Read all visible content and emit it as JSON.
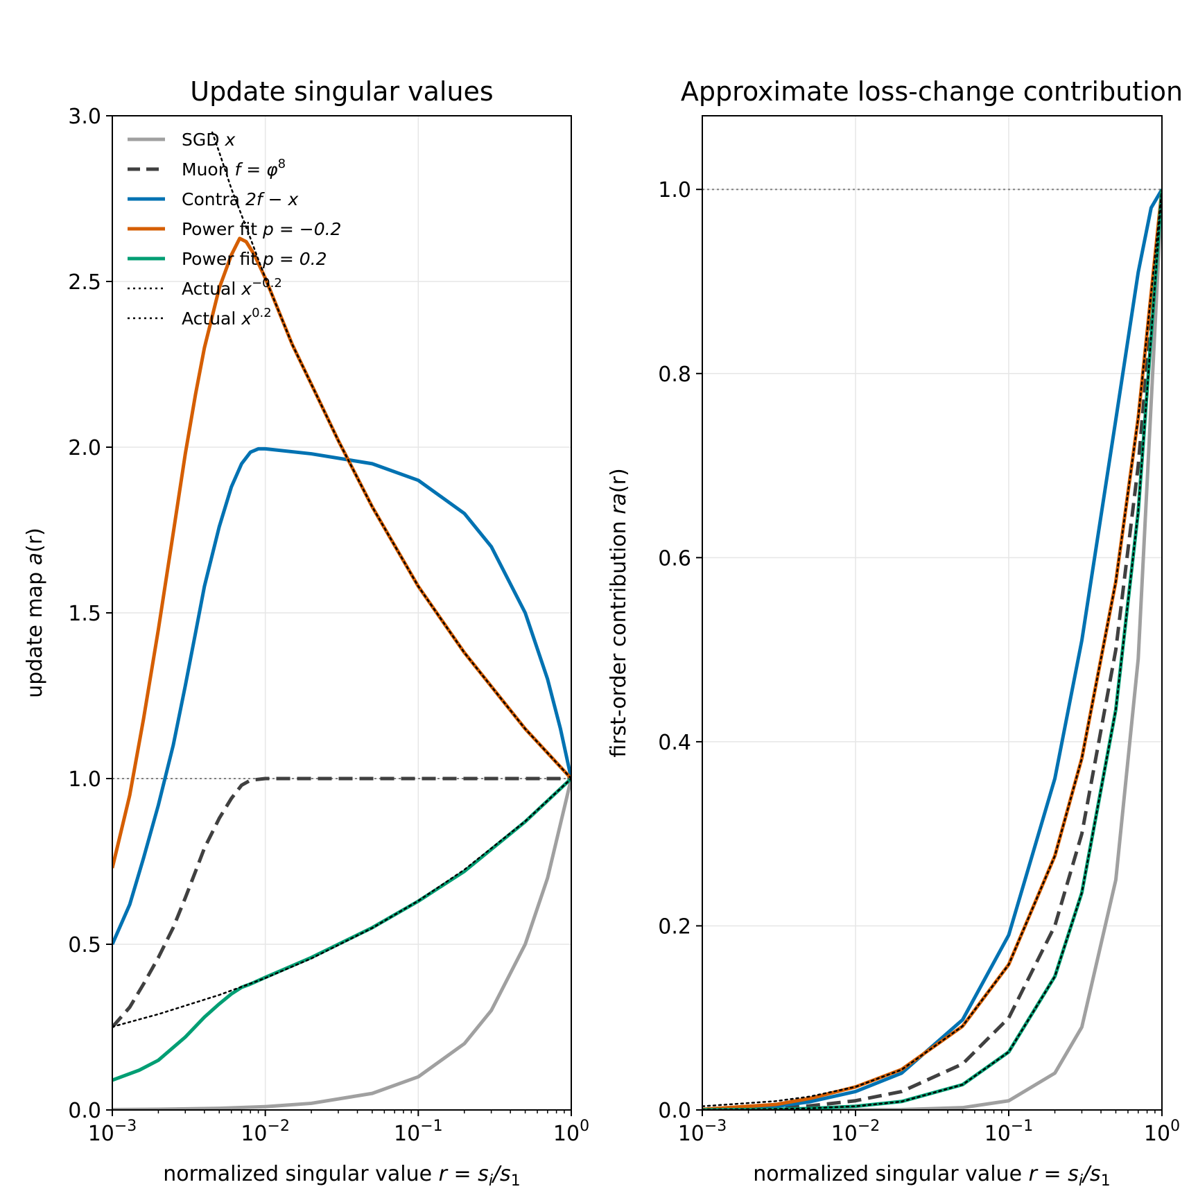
{
  "figure": {
    "suptitle": ""
  },
  "chart_data": [
    {
      "type": "line",
      "title": "Update singular values",
      "xlabel": "normalized singular value r = s_i/s_1",
      "ylabel": "update map a(r)",
      "xscale": "log",
      "xlim": [
        0.001,
        1
      ],
      "ylim": [
        0,
        3
      ],
      "grid": true,
      "legend_position": "top-left",
      "x_ticks": [
        {
          "value": 0.001,
          "base": "10",
          "exp": "−3"
        },
        {
          "value": 0.01,
          "base": "10",
          "exp": "−2"
        },
        {
          "value": 0.1,
          "base": "10",
          "exp": "−1"
        },
        {
          "value": 1,
          "base": "10",
          "exp": "0"
        }
      ],
      "y_ticks": [
        {
          "value": 0.0,
          "label": "0.0"
        },
        {
          "value": 0.5,
          "label": "0.5"
        },
        {
          "value": 1.0,
          "label": "1.0"
        },
        {
          "value": 1.5,
          "label": "1.5"
        },
        {
          "value": 2.0,
          "label": "2.0"
        },
        {
          "value": 2.5,
          "label": "2.5"
        },
        {
          "value": 3.0,
          "label": "3.0"
        }
      ],
      "reference_line": {
        "y": 1.0,
        "color": "#808080",
        "style": "dotted"
      },
      "series": [
        {
          "name": "SGD x",
          "color": "#a0a0a0",
          "style": "solid",
          "x": [
            0.001,
            0.002,
            0.005,
            0.01,
            0.02,
            0.05,
            0.1,
            0.2,
            0.3,
            0.5,
            0.7,
            1.0
          ],
          "y": [
            0.001,
            0.002,
            0.005,
            0.01,
            0.02,
            0.05,
            0.1,
            0.2,
            0.3,
            0.5,
            0.7,
            1.0
          ]
        },
        {
          "name": "Muon f = φ^8",
          "color": "#404040",
          "style": "dashed",
          "x": [
            0.001,
            0.0013,
            0.0016,
            0.002,
            0.0025,
            0.003,
            0.0035,
            0.004,
            0.005,
            0.006,
            0.007,
            0.008,
            0.01,
            0.02,
            0.05,
            0.1,
            0.2,
            0.5,
            1.0
          ],
          "y": [
            0.25,
            0.31,
            0.38,
            0.46,
            0.55,
            0.64,
            0.72,
            0.79,
            0.88,
            0.94,
            0.98,
            0.995,
            1.0,
            1.0,
            1.0,
            1.0,
            1.0,
            1.0,
            1.0
          ]
        },
        {
          "name": "Contra 2f − x",
          "color": "#0072b2",
          "style": "solid",
          "x": [
            0.001,
            0.0013,
            0.0016,
            0.002,
            0.0025,
            0.003,
            0.0035,
            0.004,
            0.005,
            0.006,
            0.007,
            0.008,
            0.009,
            0.01,
            0.02,
            0.05,
            0.1,
            0.2,
            0.3,
            0.5,
            0.7,
            0.85,
            1.0
          ],
          "y": [
            0.5,
            0.62,
            0.76,
            0.92,
            1.1,
            1.28,
            1.44,
            1.58,
            1.76,
            1.88,
            1.95,
            1.985,
            1.995,
            1.995,
            1.98,
            1.95,
            1.9,
            1.8,
            1.7,
            1.5,
            1.3,
            1.15,
            1.0
          ]
        },
        {
          "name": "Power fit p = −0.2",
          "color": "#d55e00",
          "style": "solid",
          "x": [
            0.001,
            0.0013,
            0.0016,
            0.002,
            0.0025,
            0.003,
            0.0035,
            0.004,
            0.005,
            0.006,
            0.0068,
            0.0075,
            0.0085,
            0.01,
            0.015,
            0.02,
            0.03,
            0.05,
            0.1,
            0.2,
            0.5,
            1.0
          ],
          "y": [
            0.73,
            0.95,
            1.18,
            1.45,
            1.74,
            1.98,
            2.16,
            2.3,
            2.48,
            2.58,
            2.63,
            2.62,
            2.58,
            2.51,
            2.31,
            2.19,
            2.02,
            1.82,
            1.58,
            1.38,
            1.15,
            1.0
          ]
        },
        {
          "name": "Power fit p = 0.2",
          "color": "#009e73",
          "style": "solid",
          "x": [
            0.001,
            0.0015,
            0.002,
            0.003,
            0.004,
            0.005,
            0.006,
            0.007,
            0.008,
            0.01,
            0.02,
            0.05,
            0.1,
            0.2,
            0.5,
            1.0
          ],
          "y": [
            0.09,
            0.12,
            0.15,
            0.22,
            0.28,
            0.32,
            0.35,
            0.37,
            0.38,
            0.4,
            0.46,
            0.55,
            0.63,
            0.72,
            0.87,
            1.0
          ]
        },
        {
          "name": "Actual x^−0.2",
          "color": "#000000",
          "style": "dotted",
          "x": [
            0.0045,
            0.005,
            0.006,
            0.007,
            0.008,
            0.01,
            0.015,
            0.02,
            0.03,
            0.05,
            0.1,
            0.2,
            0.5,
            1.0
          ],
          "y": [
            2.95,
            2.89,
            2.78,
            2.7,
            2.63,
            2.51,
            2.31,
            2.19,
            2.02,
            1.82,
            1.58,
            1.38,
            1.15,
            1.0
          ]
        },
        {
          "name": "Actual x^0.2",
          "color": "#000000",
          "style": "dotted",
          "x": [
            0.001,
            0.002,
            0.005,
            0.01,
            0.02,
            0.05,
            0.1,
            0.2,
            0.5,
            1.0
          ],
          "y": [
            0.251,
            0.289,
            0.347,
            0.398,
            0.457,
            0.549,
            0.631,
            0.725,
            0.871,
            1.0
          ]
        }
      ]
    },
    {
      "type": "line",
      "title": "Approximate loss-change contribution",
      "xlabel": "normalized singular value r = s_i/s_1",
      "ylabel": "first-order contribution r a(r)",
      "xscale": "log",
      "xlim": [
        0.001,
        1
      ],
      "ylim": [
        0,
        1.08
      ],
      "grid": true,
      "x_ticks": [
        {
          "value": 0.001,
          "base": "10",
          "exp": "−3"
        },
        {
          "value": 0.01,
          "base": "10",
          "exp": "−2"
        },
        {
          "value": 0.1,
          "base": "10",
          "exp": "−1"
        },
        {
          "value": 1,
          "base": "10",
          "exp": "0"
        }
      ],
      "y_ticks": [
        {
          "value": 0.0,
          "label": "0.0"
        },
        {
          "value": 0.2,
          "label": "0.2"
        },
        {
          "value": 0.4,
          "label": "0.4"
        },
        {
          "value": 0.6,
          "label": "0.6"
        },
        {
          "value": 0.8,
          "label": "0.8"
        },
        {
          "value": 1.0,
          "label": "1.0"
        }
      ],
      "reference_line": {
        "y": 1.0,
        "color": "#808080",
        "style": "dotted"
      },
      "series": [
        {
          "name": "SGD x",
          "color": "#a0a0a0",
          "style": "solid",
          "x": [
            0.001,
            0.005,
            0.01,
            0.02,
            0.05,
            0.1,
            0.2,
            0.3,
            0.5,
            0.7,
            1.0
          ],
          "y": [
            0.0,
            0.0,
            0.0001,
            0.0004,
            0.0025,
            0.01,
            0.04,
            0.09,
            0.25,
            0.49,
            1.0
          ]
        },
        {
          "name": "Muon f = φ^8",
          "color": "#404040",
          "style": "dashed",
          "x": [
            0.001,
            0.003,
            0.005,
            0.01,
            0.02,
            0.05,
            0.1,
            0.2,
            0.3,
            0.5,
            0.7,
            1.0
          ],
          "y": [
            0.0003,
            0.002,
            0.0044,
            0.01,
            0.02,
            0.05,
            0.1,
            0.2,
            0.3,
            0.5,
            0.7,
            1.0
          ]
        },
        {
          "name": "Contra 2f − x",
          "color": "#0072b2",
          "style": "solid",
          "x": [
            0.001,
            0.003,
            0.005,
            0.01,
            0.02,
            0.05,
            0.1,
            0.2,
            0.3,
            0.5,
            0.7,
            0.85,
            1.0
          ],
          "y": [
            0.0005,
            0.0038,
            0.0088,
            0.02,
            0.04,
            0.098,
            0.19,
            0.36,
            0.51,
            0.75,
            0.91,
            0.98,
            1.0
          ]
        },
        {
          "name": "Power fit p = −0.2",
          "color": "#d55e00",
          "style": "solid",
          "x": [
            0.001,
            0.003,
            0.005,
            0.01,
            0.02,
            0.05,
            0.1,
            0.2,
            0.3,
            0.5,
            0.7,
            1.0
          ],
          "y": [
            0.0007,
            0.0059,
            0.0124,
            0.025,
            0.044,
            0.091,
            0.158,
            0.276,
            0.382,
            0.574,
            0.752,
            1.0
          ]
        },
        {
          "name": "Power fit p = 0.2",
          "color": "#009e73",
          "style": "solid",
          "x": [
            0.001,
            0.003,
            0.005,
            0.01,
            0.02,
            0.05,
            0.1,
            0.2,
            0.3,
            0.5,
            0.7,
            1.0
          ],
          "y": [
            0.0001,
            0.0007,
            0.0016,
            0.004,
            0.0092,
            0.0275,
            0.063,
            0.145,
            0.236,
            0.435,
            0.65,
            1.0
          ]
        },
        {
          "name": "Actual x^−0.2",
          "color": "#000000",
          "style": "dotted",
          "x": [
            0.001,
            0.003,
            0.005,
            0.01,
            0.02,
            0.05,
            0.1,
            0.2,
            0.3,
            0.5,
            0.7,
            1.0
          ],
          "y": [
            0.004,
            0.00955,
            0.0145,
            0.0251,
            0.0437,
            0.0911,
            0.158,
            0.276,
            0.382,
            0.574,
            0.752,
            1.0
          ]
        },
        {
          "name": "Actual x^0.2",
          "color": "#000000",
          "style": "dotted",
          "x": [
            0.001,
            0.003,
            0.005,
            0.01,
            0.02,
            0.05,
            0.1,
            0.2,
            0.3,
            0.5,
            0.7,
            1.0
          ],
          "y": [
            0.0003,
            0.001,
            0.0017,
            0.004,
            0.0091,
            0.0275,
            0.063,
            0.145,
            0.236,
            0.435,
            0.65,
            1.0
          ]
        }
      ]
    }
  ],
  "legend": {
    "items": [
      {
        "style": "solid",
        "color": "#a0a0a0",
        "text": "SGD ",
        "math": "x",
        "math_sup": "",
        "tail": ""
      },
      {
        "style": "dashed",
        "color": "#404040",
        "text": "Muon ",
        "math": "f = φ",
        "math_sup": "8",
        "tail": ""
      },
      {
        "style": "solid",
        "color": "#0072b2",
        "text": "Contra ",
        "math": "2f − x",
        "math_sup": "",
        "tail": ""
      },
      {
        "style": "solid",
        "color": "#d55e00",
        "text": "Power fit ",
        "math": "p = −0.2",
        "math_sup": "",
        "tail": ""
      },
      {
        "style": "solid",
        "color": "#009e73",
        "text": "Power fit ",
        "math": "p = 0.2",
        "math_sup": "",
        "tail": ""
      },
      {
        "style": "dotted",
        "color": "#000000",
        "text": "Actual ",
        "math": "x",
        "math_sup": "−0.2",
        "tail": ""
      },
      {
        "style": "dotted",
        "color": "#000000",
        "text": "Actual ",
        "math": "x",
        "math_sup": "0.2",
        "tail": ""
      }
    ]
  },
  "labels": {
    "xlabel_left": {
      "text": "normalized singular value ",
      "math": "r = s",
      "sub1": "i",
      "slash": "/s",
      "sub2": "1"
    },
    "xlabel_right": {
      "text": "normalized singular value ",
      "math": "r = s",
      "sub1": "i",
      "slash": "/s",
      "sub2": "1"
    },
    "ylabel_left": {
      "text": "update map ",
      "math": "a",
      "tail": "(r)"
    },
    "ylabel_right": {
      "text": "first-order contribution ",
      "math": "ra",
      "tail": "(r)"
    }
  }
}
